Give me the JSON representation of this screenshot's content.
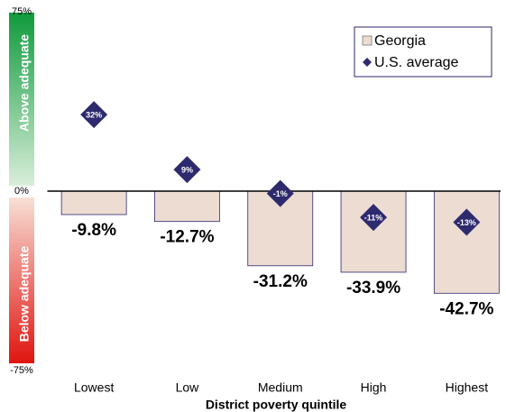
{
  "chart_data": {
    "type": "bar",
    "x_label": "District poverty quintile",
    "annotations": [
      "Above adequate",
      "Below adequate"
    ],
    "categories": [
      "Lowest",
      "Low",
      "Medium",
      "High",
      "Highest"
    ],
    "series": [
      {
        "name": "Georgia",
        "type": "bar",
        "color": "#ecdcd2",
        "values": [
          -9.8,
          -12.7,
          -31.2,
          -33.9,
          -42.7
        ],
        "value_labels": [
          "-9.8%",
          "-12.7%",
          "-31.2%",
          "-33.9%",
          "-42.7%"
        ]
      },
      {
        "name": "U.S. average",
        "type": "scatter",
        "color": "#2e2a6e",
        "values": [
          32,
          9,
          -1,
          -11,
          -13
        ],
        "value_labels": [
          "32%",
          "9%",
          "-1%",
          "-11%",
          "-13%"
        ]
      }
    ],
    "ylim": [
      -75,
      75
    ],
    "yticks": [
      {
        "value": 75,
        "label": "75%"
      },
      {
        "value": 0,
        "label": "0%"
      },
      {
        "value": -75,
        "label": "-75%"
      }
    ],
    "grid": false,
    "legend": "upper right"
  }
}
